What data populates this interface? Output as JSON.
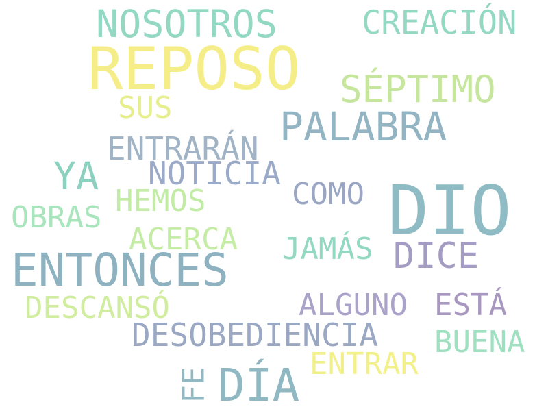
{
  "cloud": {
    "words": [
      {
        "text": "REPOSO",
        "color": "#f5ee88"
      },
      {
        "text": "DIO",
        "color": "#8fbcc4"
      },
      {
        "text": "ENTONCES",
        "color": "#8fb2c0"
      },
      {
        "text": "NOSOTROS",
        "color": "#93d8c2"
      },
      {
        "text": "CREACIÓN",
        "color": "#93d8c2"
      },
      {
        "text": "SÉPTIMO",
        "color": "#c6e69e"
      },
      {
        "text": "PALABRA",
        "color": "#93b4c2"
      },
      {
        "text": "SUS",
        "color": "#e6ee8e"
      },
      {
        "text": "ENTRARÁN",
        "color": "#a0b4c6"
      },
      {
        "text": "YA",
        "color": "#8cd0c0"
      },
      {
        "text": "NOTICIA",
        "color": "#9aaac8"
      },
      {
        "text": "COMO",
        "color": "#9aa6c4"
      },
      {
        "text": "HEMOS",
        "color": "#c2eca6"
      },
      {
        "text": "OBRAS",
        "color": "#a8e4bc"
      },
      {
        "text": "ACERCA",
        "color": "#c4eca4"
      },
      {
        "text": "JAMÁS",
        "color": "#93d8c2"
      },
      {
        "text": "DICE",
        "color": "#a49cc2"
      },
      {
        "text": "DESCANSÓ",
        "color": "#d0ec9e"
      },
      {
        "text": "ALGUNO",
        "color": "#aaa2c8"
      },
      {
        "text": "ESTÁ",
        "color": "#a898c0"
      },
      {
        "text": "DESOBEDIENCIA",
        "color": "#9aa8c4"
      },
      {
        "text": "BUENA",
        "color": "#9ee0c0"
      },
      {
        "text": "ENTRAR",
        "color": "#f2f08a"
      },
      {
        "text": "DÍA",
        "color": "#8fb8c2"
      },
      {
        "text": "FE",
        "color": "#93b8c2"
      }
    ]
  }
}
